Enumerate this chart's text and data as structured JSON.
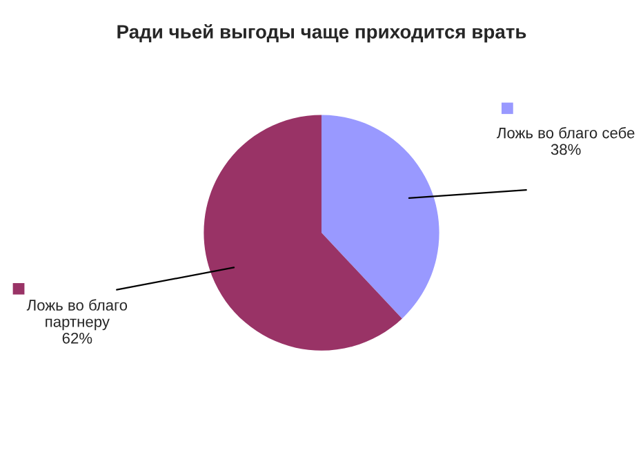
{
  "chart_data": {
    "type": "pie",
    "title": "Ради чьей выгоды чаще приходится врать",
    "categories": [
      "Ложь во благо себе",
      "Ложь во благо партнеру"
    ],
    "values": [
      38,
      62
    ],
    "value_labels": [
      "38%",
      "62%"
    ],
    "colors": [
      "#9999ff",
      "#993366"
    ],
    "legend": "right"
  }
}
